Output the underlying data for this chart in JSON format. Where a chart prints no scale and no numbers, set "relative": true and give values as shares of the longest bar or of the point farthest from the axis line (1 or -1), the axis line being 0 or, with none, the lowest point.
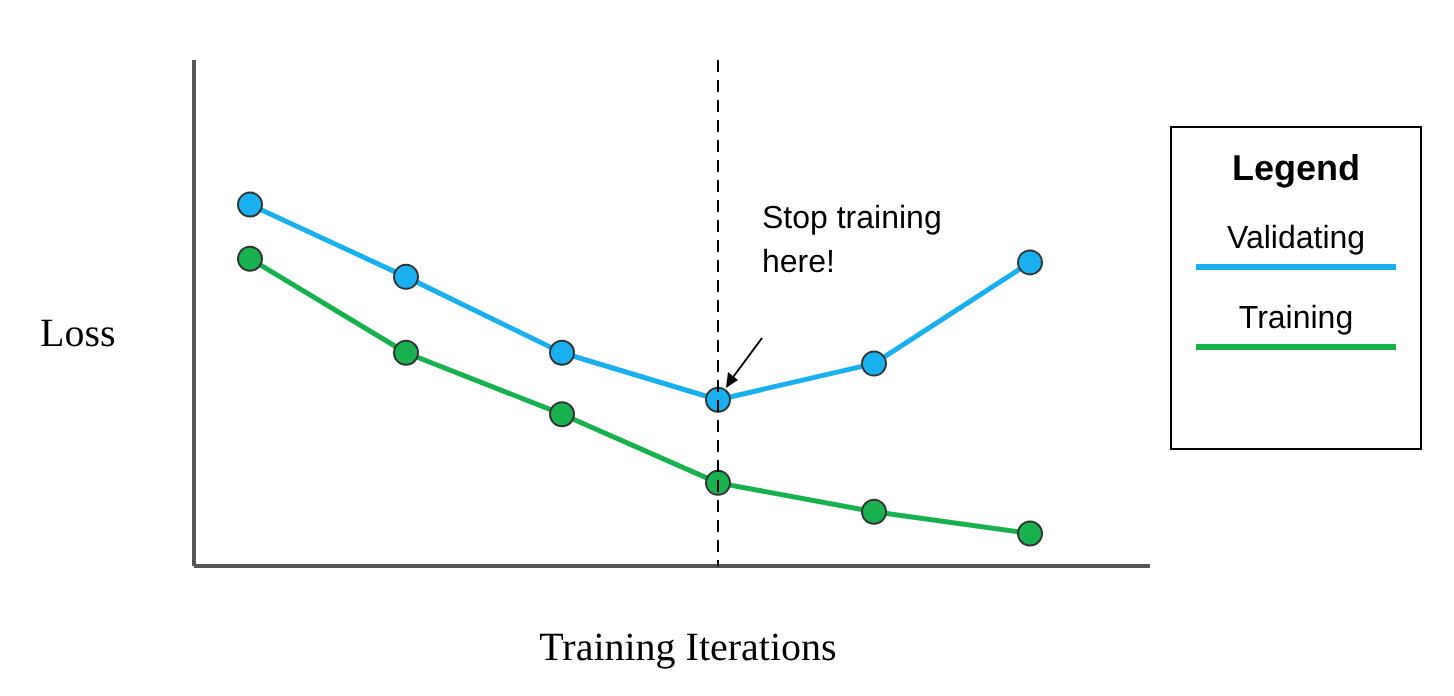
{
  "chart_data": {
    "type": "line",
    "relative": true,
    "xlabel": "Training Iterations",
    "ylabel": "Loss",
    "legend_title": "Legend",
    "legend": "right",
    "marker": "circle",
    "line_style": "solid",
    "categories": [
      null,
      null,
      null,
      null,
      null,
      null
    ],
    "series": [
      {
        "name": "Validating",
        "color": "#1ab0ef",
        "values": [
          1,
          0.8,
          0.59,
          0.46,
          0.56,
          0.84
        ]
      },
      {
        "name": "Training",
        "color": "#19b050",
        "values": [
          0.85,
          0.59,
          0.42,
          0.23,
          0.15,
          0.09
        ]
      }
    ],
    "annotations": [
      "Stop training here!"
    ]
  }
}
